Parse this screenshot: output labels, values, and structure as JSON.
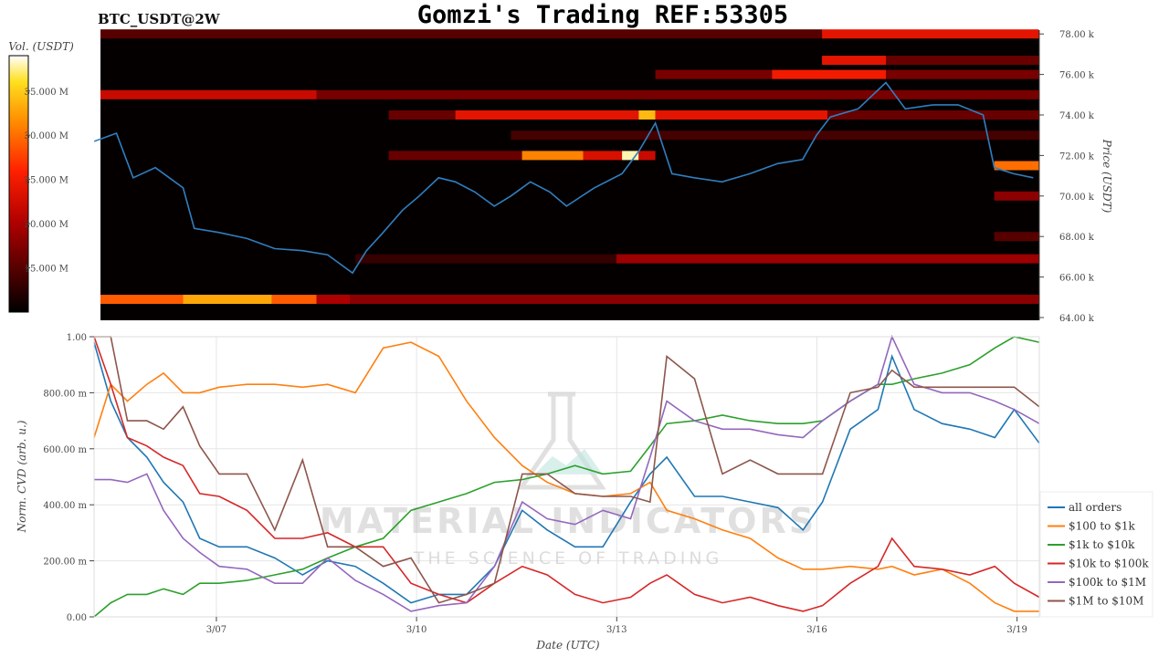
{
  "title": "Gomzi's Trading REF:53305",
  "subtitle": "BTC_USDT@2W",
  "watermark": {
    "line1": "MATERIAL INDICATORS",
    "line2": "THE SCIENCE OF TRADING"
  },
  "chart_data": [
    {
      "type": "heatmap",
      "x_range": [
        "03/05 04:00",
        "03/19 08:00"
      ],
      "ylabel": "Price (USDT)",
      "ylim": [
        64,
        78.4
      ],
      "y_ticks": [
        "64.00 k",
        "66.00 k",
        "68.00 k",
        "70.00 k",
        "72.00 k",
        "74.00 k",
        "76.00 k",
        "78.00 k"
      ],
      "colorbar": {
        "label": "Vol. (USDT)",
        "range": [
          10,
          39
        ],
        "ticks": [
          "15.000 M",
          "20.000 M",
          "25.000 M",
          "30.000 M",
          "35.000 M"
        ],
        "tick_values": [
          15,
          20,
          25,
          30,
          35
        ],
        "colormap": "hot"
      },
      "bands": [
        {
          "price": 78.0,
          "from": "03/05 04:00",
          "to": "03/16 02:00",
          "vol": 15
        },
        {
          "price": 78.0,
          "from": "03/16 02:00",
          "to": "03/19 08:00",
          "vol": 24
        },
        {
          "price": 76.7,
          "from": "03/16 02:00",
          "to": "03/17 01:00",
          "vol": 24
        },
        {
          "price": 76.7,
          "from": "03/17 01:00",
          "to": "03/19 08:00",
          "vol": 16
        },
        {
          "price": 76.0,
          "from": "03/13 14:00",
          "to": "03/15 08:00",
          "vol": 17
        },
        {
          "price": 76.0,
          "from": "03/15 08:00",
          "to": "03/17 01:00",
          "vol": 25
        },
        {
          "price": 76.0,
          "from": "03/17 01:00",
          "to": "03/19 08:00",
          "vol": 17
        },
        {
          "price": 75.0,
          "from": "03/05 04:00",
          "to": "03/08 12:00",
          "vol": 22
        },
        {
          "price": 75.0,
          "from": "03/08 12:00",
          "to": "03/19 08:00",
          "vol": 17
        },
        {
          "price": 74.0,
          "from": "03/09 14:00",
          "to": "03/10 14:00",
          "vol": 16
        },
        {
          "price": 74.0,
          "from": "03/10 14:00",
          "to": "03/13 08:00",
          "vol": 24
        },
        {
          "price": 74.0,
          "from": "03/13 08:00",
          "to": "03/13 14:00",
          "vol": 34
        },
        {
          "price": 74.0,
          "from": "03/13 14:00",
          "to": "03/16 04:00",
          "vol": 24
        },
        {
          "price": 74.0,
          "from": "03/16 04:00",
          "to": "03/19 08:00",
          "vol": 16
        },
        {
          "price": 73.0,
          "from": "03/11 10:00",
          "to": "03/19 08:00",
          "vol": 14
        },
        {
          "price": 72.0,
          "from": "03/09 14:00",
          "to": "03/11 14:00",
          "vol": 16
        },
        {
          "price": 72.0,
          "from": "03/11 14:00",
          "to": "03/12 12:00",
          "vol": 31
        },
        {
          "price": 72.0,
          "from": "03/12 12:00",
          "to": "03/13 02:00",
          "vol": 23
        },
        {
          "price": 72.0,
          "from": "03/13 02:00",
          "to": "03/13 08:00",
          "vol": 38
        },
        {
          "price": 72.0,
          "from": "03/13 08:00",
          "to": "03/13 14:00",
          "vol": 22
        },
        {
          "price": 71.5,
          "from": "03/18 16:00",
          "to": "03/19 08:00",
          "vol": 30
        },
        {
          "price": 70.0,
          "from": "03/18 16:00",
          "to": "03/19 08:00",
          "vol": 18
        },
        {
          "price": 68.0,
          "from": "03/18 16:00",
          "to": "03/19 08:00",
          "vol": 15
        },
        {
          "price": 66.9,
          "from": "03/09 02:00",
          "to": "03/13 00:00",
          "vol": 13
        },
        {
          "price": 66.9,
          "from": "03/13 00:00",
          "to": "03/19 08:00",
          "vol": 19
        },
        {
          "price": 64.9,
          "from": "03/05 04:00",
          "to": "03/06 12:00",
          "vol": 29
        },
        {
          "price": 64.9,
          "from": "03/06 12:00",
          "to": "03/07 20:00",
          "vol": 33
        },
        {
          "price": 64.9,
          "from": "03/07 20:00",
          "to": "03/08 12:00",
          "vol": 29
        },
        {
          "price": 64.9,
          "from": "03/08 12:00",
          "to": "03/09 00:00",
          "vol": 20
        },
        {
          "price": 64.9,
          "from": "03/09 00:00",
          "to": "03/19 08:00",
          "vol": 18
        }
      ],
      "price_series": {
        "color": "#2f7fc1",
        "x": [
          "03/05 04:00",
          "03/05 12:00",
          "03/05 18:00",
          "03/06 02:00",
          "03/06 12:00",
          "03/06 16:00",
          "03/07 01:00",
          "03/07 11:00",
          "03/07 21:00",
          "03/08 07:00",
          "03/08 16:00",
          "03/09 01:00",
          "03/09 06:00",
          "03/09 12:00",
          "03/09 19:00",
          "03/10 01:00",
          "03/10 08:00",
          "03/10 14:00",
          "03/10 21:00",
          "03/11 04:00",
          "03/11 10:00",
          "03/11 17:00",
          "03/12 00:00",
          "03/12 06:00",
          "03/12 16:00",
          "03/13 02:00",
          "03/13 08:00",
          "03/13 14:00",
          "03/13 20:00",
          "03/14 04:00",
          "03/14 14:00",
          "03/15 00:00",
          "03/15 10:00",
          "03/15 19:00",
          "03/16 00:00",
          "03/16 05:00",
          "03/16 15:00",
          "03/17 01:00",
          "03/17 08:00",
          "03/17 18:00",
          "03/18 03:00",
          "03/18 12:00",
          "03/18 16:00",
          "03/18 23:00",
          "03/19 06:00"
        ],
        "y": [
          72.7,
          73.1,
          70.9,
          71.4,
          70.4,
          68.4,
          68.2,
          67.9,
          67.4,
          67.3,
          67.1,
          66.2,
          67.3,
          68.2,
          69.3,
          70.0,
          70.9,
          70.7,
          70.2,
          69.5,
          70.0,
          70.7,
          70.2,
          69.5,
          70.4,
          71.1,
          72.2,
          73.6,
          71.1,
          70.9,
          70.7,
          71.1,
          71.6,
          71.8,
          73.0,
          73.9,
          74.3,
          75.6,
          74.3,
          74.5,
          74.5,
          74.0,
          71.4,
          71.1,
          70.9
        ]
      }
    },
    {
      "type": "line",
      "xlabel": "Date (UTC)",
      "ylabel": "Norm. CVD (arb. u.)",
      "ylim": [
        0,
        1
      ],
      "y_ticks": [
        "0.00",
        "200.00 m",
        "400.00 m",
        "600.00 m",
        "800.00 m",
        "1.00"
      ],
      "x_ticks": [
        "3/07",
        "3/10",
        "3/13",
        "3/16",
        "3/19"
      ],
      "x_range": [
        "03/05 04:00",
        "03/19 08:00"
      ],
      "grid": true,
      "legend": "right",
      "x": [
        "03/05 04:00",
        "03/05 10:00",
        "03/05 16:00",
        "03/05 23:00",
        "03/06 05:00",
        "03/06 12:00",
        "03/06 18:00",
        "03/07 01:00",
        "03/07 11:00",
        "03/07 21:00",
        "03/08 07:00",
        "03/08 16:00",
        "03/09 02:00",
        "03/09 12:00",
        "03/09 22:00",
        "03/10 08:00",
        "03/10 18:00",
        "03/11 04:00",
        "03/11 14:00",
        "03/11 23:00",
        "03/12 09:00",
        "03/12 19:00",
        "03/13 05:00",
        "03/13 12:00",
        "03/13 18:00",
        "03/14 04:00",
        "03/14 14:00",
        "03/15 00:00",
        "03/15 10:00",
        "03/15 19:00",
        "03/16 02:00",
        "03/16 12:00",
        "03/16 22:00",
        "03/17 03:00",
        "03/17 11:00",
        "03/17 21:00",
        "03/18 07:00",
        "03/18 16:00",
        "03/18 23:00",
        "03/19 08:00"
      ],
      "series": [
        {
          "name": "all orders",
          "color": "#1f77b4",
          "values": [
            0.98,
            0.77,
            0.64,
            0.57,
            0.48,
            0.41,
            0.28,
            0.25,
            0.25,
            0.21,
            0.15,
            0.2,
            0.18,
            0.12,
            0.05,
            0.08,
            0.08,
            0.18,
            0.38,
            0.31,
            0.25,
            0.25,
            0.41,
            0.51,
            0.57,
            0.43,
            0.43,
            0.41,
            0.39,
            0.31,
            0.41,
            0.67,
            0.74,
            0.93,
            0.74,
            0.69,
            0.67,
            0.64,
            0.74,
            0.62
          ]
        },
        {
          "name": "$100 to $1k",
          "color": "#ff7f0e",
          "values": [
            0.64,
            0.83,
            0.77,
            0.83,
            0.87,
            0.8,
            0.8,
            0.82,
            0.83,
            0.83,
            0.82,
            0.83,
            0.8,
            0.96,
            0.98,
            0.93,
            0.77,
            0.64,
            0.54,
            0.48,
            0.44,
            0.43,
            0.44,
            0.48,
            0.38,
            0.35,
            0.31,
            0.28,
            0.21,
            0.17,
            0.17,
            0.18,
            0.17,
            0.18,
            0.15,
            0.17,
            0.12,
            0.05,
            0.02,
            0.02
          ]
        },
        {
          "name": "$1k to $10k",
          "color": "#2ca02c",
          "values": [
            0.0,
            0.05,
            0.08,
            0.08,
            0.1,
            0.08,
            0.12,
            0.12,
            0.13,
            0.15,
            0.17,
            0.21,
            0.25,
            0.28,
            0.38,
            0.41,
            0.44,
            0.48,
            0.49,
            0.51,
            0.54,
            0.51,
            0.52,
            0.61,
            0.69,
            0.7,
            0.72,
            0.7,
            0.69,
            0.69,
            0.7,
            0.77,
            0.83,
            0.83,
            0.85,
            0.87,
            0.9,
            0.96,
            1.0,
            0.98
          ]
        },
        {
          "name": "$10k to $100k",
          "color": "#d62728",
          "values": [
            1.0,
            0.83,
            0.64,
            0.61,
            0.57,
            0.54,
            0.44,
            0.43,
            0.38,
            0.28,
            0.28,
            0.3,
            0.25,
            0.25,
            0.12,
            0.08,
            0.05,
            0.12,
            0.18,
            0.15,
            0.08,
            0.05,
            0.07,
            0.12,
            0.15,
            0.08,
            0.05,
            0.07,
            0.04,
            0.02,
            0.04,
            0.12,
            0.18,
            0.28,
            0.18,
            0.17,
            0.15,
            0.18,
            0.12,
            0.07
          ]
        },
        {
          "name": "$100k to $1M",
          "color": "#9467bd",
          "values": [
            0.49,
            0.49,
            0.48,
            0.51,
            0.38,
            0.28,
            0.23,
            0.18,
            0.17,
            0.12,
            0.12,
            0.21,
            0.13,
            0.08,
            0.02,
            0.04,
            0.05,
            0.18,
            0.41,
            0.35,
            0.33,
            0.38,
            0.35,
            0.57,
            0.77,
            0.7,
            0.67,
            0.67,
            0.65,
            0.64,
            0.7,
            0.77,
            0.83,
            1.0,
            0.83,
            0.8,
            0.8,
            0.77,
            0.74,
            0.69
          ]
        },
        {
          "name": "$1M to $10M",
          "color": "#8c564b",
          "values": [
            1.0,
            1.0,
            0.7,
            0.7,
            0.67,
            0.75,
            0.61,
            0.51,
            0.51,
            0.31,
            0.56,
            0.25,
            0.25,
            0.18,
            0.21,
            0.05,
            0.08,
            0.12,
            0.51,
            0.51,
            0.44,
            0.43,
            0.43,
            0.41,
            0.93,
            0.85,
            0.51,
            0.56,
            0.51,
            0.51,
            0.51,
            0.8,
            0.82,
            0.88,
            0.82,
            0.82,
            0.82,
            0.82,
            0.82,
            0.75
          ]
        }
      ]
    }
  ]
}
